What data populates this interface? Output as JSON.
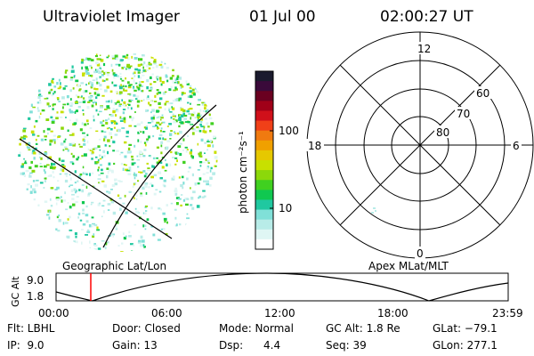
{
  "header": {
    "instrument": "Ultraviolet Imager",
    "date": "01 Jul 00",
    "time": "02:00:27 UT"
  },
  "left_panel": {
    "caption": "Geographic Lat/Lon"
  },
  "right_panel": {
    "caption": "Apex MLat/MLT",
    "mlt_labels": {
      "top": "12",
      "bottom": "0",
      "left": "18",
      "right": "6"
    },
    "lat_labels": [
      "60",
      "70",
      "80"
    ]
  },
  "colorbar": {
    "unit_label": "photon cm⁻²s⁻¹",
    "ticks": [
      "100",
      "10"
    ],
    "colors": [
      "#1a1a2e",
      "#3a0a3a",
      "#6a0020",
      "#a00018",
      "#d0101a",
      "#f04018",
      "#f07a10",
      "#f0a000",
      "#e6c800",
      "#c8e000",
      "#8cd80a",
      "#40d020",
      "#10c850",
      "#20c8a0",
      "#80e0d8",
      "#b8ece8",
      "#dff6f4",
      "#ffffff"
    ]
  },
  "altitude_plot": {
    "ylabel": "GC Alt",
    "yticks": [
      "9.0",
      "1.8"
    ],
    "xticks": [
      "00:00",
      "06:00",
      "12:00",
      "18:00",
      "23:59"
    ],
    "marker_color": "#ff0000"
  },
  "info": {
    "flt": "Flt: LBHL",
    "ip": "IP:  9.0",
    "door": "Door: Closed",
    "gain": "Gain: 13",
    "mode": "Mode: Normal",
    "dsp": "Dsp:      4.4",
    "gcalt": "GC Alt: 1.8 Re",
    "seq": "Seq: 39",
    "glat": "GLat: −79.1",
    "glon": "GLon: 277.1"
  }
}
